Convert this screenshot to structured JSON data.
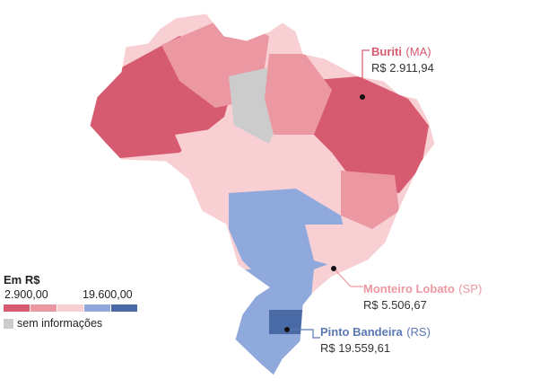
{
  "map": {
    "colors": {
      "class1": "#d65b70",
      "class2": "#ec98a2",
      "class3": "#f8cfd3",
      "class4": "#8fa9dd",
      "class5": "#4a6aa6",
      "no_data": "#cccccc"
    }
  },
  "legend": {
    "title": "Em R$",
    "min_label": "2.900,00",
    "max_label": "19.600,00",
    "no_data_label": "sem informações"
  },
  "callouts": [
    {
      "place": "Buriti",
      "state": "(MA)",
      "value": "R$ 2.911,94",
      "color": "#d65b70"
    },
    {
      "place": "Monteiro Lobato",
      "state": "(SP)",
      "value": "R$ 5.506,67",
      "color": "#ec98a2"
    },
    {
      "place": "Pinto Bandeira",
      "state": "(RS)",
      "value": "R$ 19.559,61",
      "color": "#5b78b3"
    }
  ]
}
